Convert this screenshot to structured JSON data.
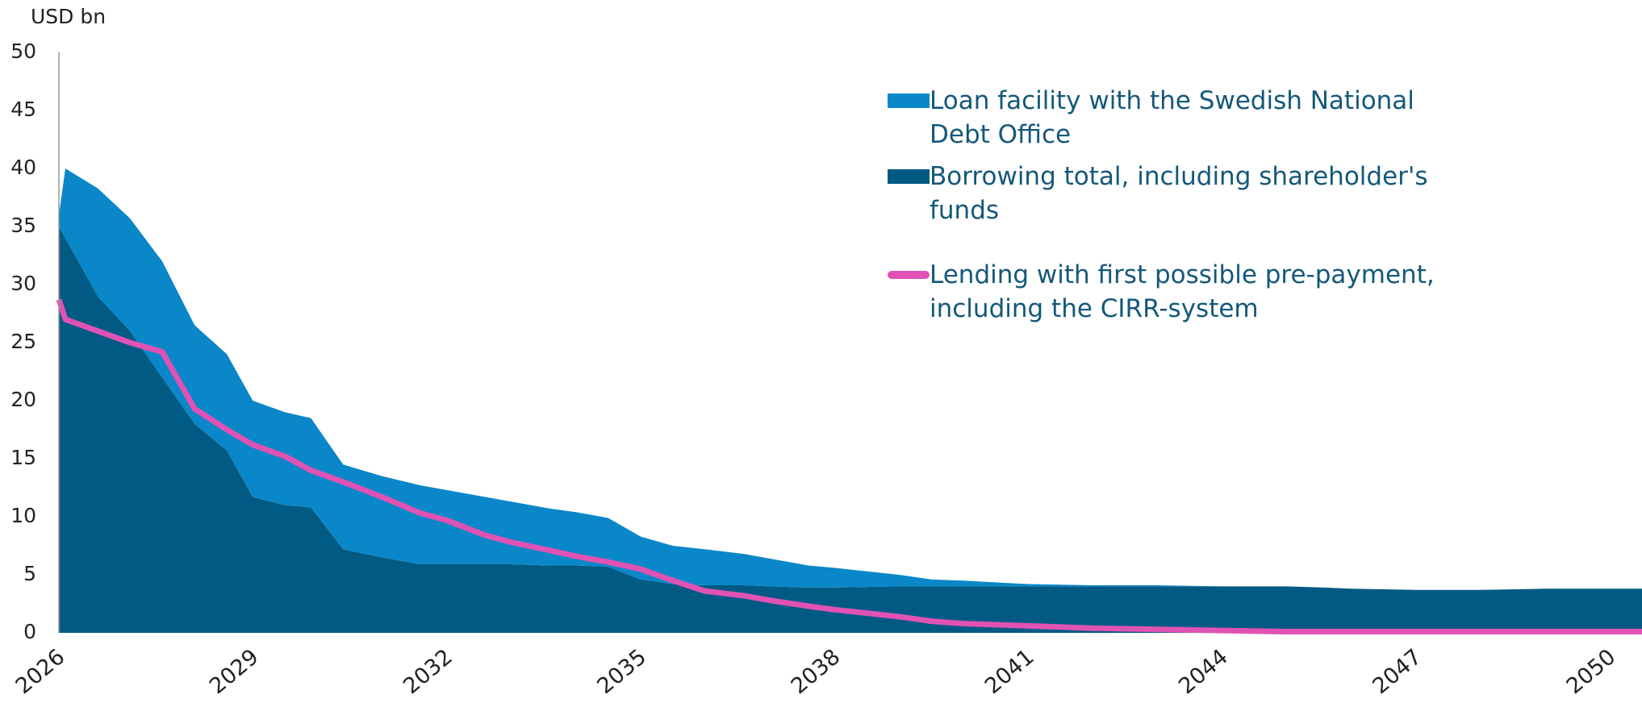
{
  "chart_data": {
    "type": "area",
    "stacked": true,
    "y_label": "USD bn",
    "x": [
      2026,
      2026.1,
      2026.6,
      2027.1,
      2027.6,
      2028.1,
      2028.6,
      2029,
      2029.5,
      2029.9,
      2030.4,
      2031,
      2031.6,
      2032,
      2032.6,
      2033,
      2033.6,
      2034,
      2034.5,
      2035,
      2035.5,
      2036,
      2036.6,
      2037,
      2037.6,
      2038,
      2039,
      2039.5,
      2040,
      2041,
      2042,
      2043,
      2044,
      2045,
      2045.6,
      2046,
      2047,
      2048,
      2049,
      2050,
      2050.5
    ],
    "series": [
      {
        "name": "Borrowing total, including shareholder's funds",
        "type": "area",
        "color": "#005a84",
        "values": [
          35,
          34,
          29,
          26,
          22,
          18,
          15.7,
          11.7,
          11,
          10.8,
          7.2,
          6.5,
          5.9,
          5.9,
          5.9,
          5.9,
          5.8,
          5.8,
          5.7,
          4.6,
          4.2,
          4.1,
          4.1,
          4,
          3.9,
          3.9,
          4,
          4,
          4,
          4,
          4,
          4,
          4,
          4,
          3.9,
          3.8,
          3.7,
          3.7,
          3.8,
          3.8,
          3.8
        ]
      },
      {
        "name": "Loan facility with the Swedish National Debt Office",
        "type": "area",
        "color": "#0a87c8",
        "values": [
          1,
          6,
          9.3,
          9.7,
          10,
          8.5,
          8.3,
          8.3,
          8,
          7.7,
          7.3,
          7,
          6.8,
          6.4,
          5.8,
          5.4,
          4.9,
          4.6,
          4.2,
          3.7,
          3.3,
          3.1,
          2.7,
          2.4,
          1.9,
          1.7,
          1,
          0.6,
          0.5,
          0.2,
          0.1,
          0.1,
          0,
          0,
          0,
          0,
          0,
          0,
          0,
          0,
          0
        ]
      },
      {
        "name": "Lending with first possible pre-payment, including the CIRR-system",
        "type": "line",
        "color": "#e052b4",
        "values": [
          28.7,
          27,
          26,
          25,
          24.2,
          19.3,
          17.5,
          16.2,
          15.2,
          14,
          13,
          11.7,
          10.3,
          9.7,
          8.4,
          7.8,
          7.1,
          6.6,
          6.1,
          5.5,
          4.5,
          3.6,
          3.2,
          2.8,
          2.3,
          2,
          1.4,
          1,
          0.8,
          0.6,
          0.4,
          0.3,
          0.2,
          0.1,
          0.1,
          0.1,
          0.1,
          0.1,
          0.1,
          0.1,
          0.1
        ]
      }
    ],
    "xlim": [
      2026,
      2050.5
    ],
    "xticks": [
      2026,
      2029,
      2032,
      2035,
      2038,
      2041,
      2044,
      2047,
      2050
    ],
    "ylim": [
      0,
      50
    ],
    "yticks": [
      0,
      5,
      10,
      15,
      20,
      25,
      30,
      35,
      40,
      45,
      50
    ],
    "grid": false,
    "legend": "top-right"
  }
}
